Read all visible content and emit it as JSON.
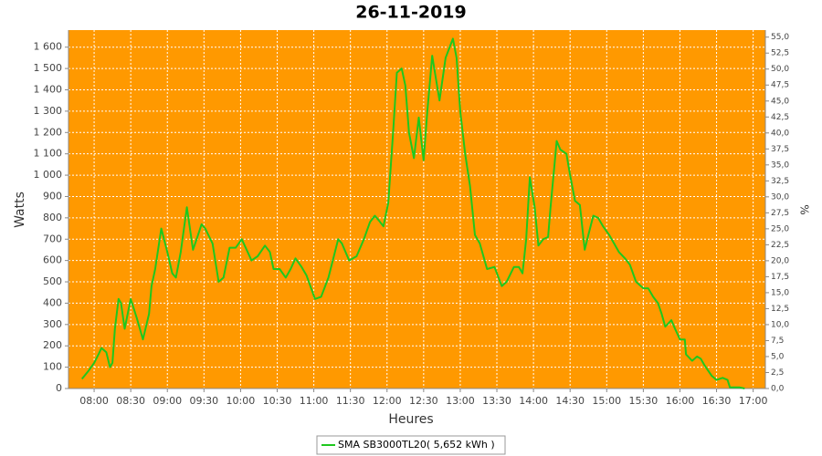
{
  "chart_data": {
    "type": "line",
    "title": "26-11-2019",
    "xlabel": "Heures",
    "ylabel": "Watts",
    "y2label": "%",
    "x": [
      "07:50",
      "07:55",
      "08:00",
      "08:04",
      "08:06",
      "08:10",
      "08:13",
      "08:15",
      "08:17",
      "08:20",
      "08:22",
      "08:25",
      "08:30",
      "08:35",
      "08:40",
      "08:45",
      "08:47",
      "08:50",
      "08:55",
      "09:00",
      "09:04",
      "09:07",
      "09:11",
      "09:16",
      "09:21",
      "09:24",
      "09:28",
      "09:31",
      "09:37",
      "09:42",
      "09:46",
      "09:51",
      "09:56",
      "10:01",
      "10:09",
      "10:14",
      "10:20",
      "10:24",
      "10:27",
      "10:32",
      "10:37",
      "10:41",
      "10:45",
      "10:50",
      "10:54",
      "11:01",
      "11:06",
      "11:12",
      "11:20",
      "11:23",
      "11:29",
      "11:35",
      "11:41",
      "11:46",
      "11:50",
      "11:53",
      "11:57",
      "12:01",
      "12:05",
      "12:08",
      "12:12",
      "12:15",
      "12:18",
      "12:22",
      "12:26",
      "12:30",
      "12:33",
      "12:37",
      "12:43",
      "12:48",
      "12:54",
      "12:57",
      "13:00",
      "13:04",
      "13:08",
      "13:12",
      "13:16",
      "13:22",
      "13:28",
      "13:34",
      "13:38",
      "13:44",
      "13:48",
      "13:51",
      "13:54",
      "13:57",
      "14:01",
      "14:04",
      "14:08",
      "14:12",
      "14:14",
      "14:19",
      "14:22",
      "14:27",
      "14:30",
      "14:34",
      "14:38",
      "14:42",
      "14:45",
      "14:49",
      "14:53",
      "14:57",
      "15:02",
      "15:06",
      "15:10",
      "15:15",
      "15:19",
      "15:24",
      "15:30",
      "15:34",
      "15:38",
      "15:42",
      "15:45",
      "15:48",
      "15:53",
      "15:56",
      "16:00",
      "16:04",
      "16:05",
      "16:10",
      "16:14",
      "16:17",
      "16:20",
      "16:26",
      "16:30",
      "16:35",
      "16:39",
      "16:41",
      "16:49",
      "16:53"
    ],
    "series": [
      {
        "name": "SMA SB3000TL20( 5,652 kWh )",
        "color": "#1ec81e",
        "values": [
          45,
          80,
          120,
          165,
          190,
          170,
          100,
          120,
          280,
          420,
          400,
          280,
          420,
          330,
          230,
          350,
          480,
          560,
          750,
          640,
          540,
          520,
          640,
          850,
          650,
          700,
          770,
          750,
          680,
          500,
          520,
          660,
          660,
          700,
          600,
          620,
          670,
          640,
          560,
          560,
          520,
          560,
          610,
          570,
          530,
          420,
          430,
          520,
          700,
          680,
          600,
          620,
          700,
          780,
          810,
          790,
          760,
          870,
          1200,
          1480,
          1500,
          1420,
          1200,
          1080,
          1270,
          1070,
          1300,
          1560,
          1350,
          1550,
          1640,
          1550,
          1300,
          1100,
          950,
          720,
          680,
          560,
          570,
          480,
          500,
          570,
          570,
          540,
          700,
          990,
          850,
          670,
          700,
          710,
          850,
          1160,
          1120,
          1100,
          1000,
          880,
          860,
          650,
          720,
          810,
          800,
          760,
          720,
          680,
          640,
          610,
          580,
          500,
          470,
          470,
          430,
          400,
          350,
          290,
          320,
          280,
          230,
          230,
          160,
          130,
          150,
          140,
          110,
          60,
          40,
          50,
          40,
          5,
          5,
          0
        ]
      }
    ],
    "xlim": [
      "07:39",
      "17:10"
    ],
    "xticks": [
      "08:00",
      "08:30",
      "09:00",
      "09:30",
      "10:00",
      "10:30",
      "11:00",
      "11:30",
      "12:00",
      "12:30",
      "13:00",
      "13:30",
      "14:00",
      "14:30",
      "15:00",
      "15:30",
      "16:00",
      "16:30",
      "17:00"
    ],
    "ylim": [
      0,
      1680
    ],
    "yticks": [
      0,
      100,
      200,
      300,
      400,
      500,
      600,
      700,
      800,
      900,
      {
        "value": 1000,
        "label": "1 000"
      },
      {
        "value": 1100,
        "label": "1 100"
      },
      {
        "value": 1200,
        "label": "1 200"
      },
      {
        "value": 1300,
        "label": "1 300"
      },
      {
        "value": 1400,
        "label": "1 400"
      },
      {
        "value": 1500,
        "label": "1 500"
      },
      {
        "value": 1600,
        "label": "1 600"
      }
    ],
    "y2lim": [
      0,
      56.1
    ],
    "y2ticks": [
      {
        "value": 0,
        "label": "0,0"
      },
      {
        "value": 2.5,
        "label": "2,5"
      },
      {
        "value": 5,
        "label": "5,0"
      },
      {
        "value": 7.5,
        "label": "7,5"
      },
      {
        "value": 10,
        "label": "10,0"
      },
      {
        "value": 12.5,
        "label": "12,5"
      },
      {
        "value": 15,
        "label": "15,0"
      },
      {
        "value": 17.5,
        "label": "17,5"
      },
      {
        "value": 20,
        "label": "20,0"
      },
      {
        "value": 22.5,
        "label": "22,5"
      },
      {
        "value": 25,
        "label": "25,0"
      },
      {
        "value": 27.5,
        "label": "27,5"
      },
      {
        "value": 30,
        "label": "30,0"
      },
      {
        "value": 32.5,
        "label": "32,5"
      },
      {
        "value": 35,
        "label": "35,0"
      },
      {
        "value": 37.5,
        "label": "37,5"
      },
      {
        "value": 40,
        "label": "40,0"
      },
      {
        "value": 42.5,
        "label": "42,5"
      },
      {
        "value": 45,
        "label": "45,0"
      },
      {
        "value": 47.5,
        "label": "47,5"
      },
      {
        "value": 50,
        "label": "50,0"
      },
      {
        "value": 52.5,
        "label": "52,5"
      },
      {
        "value": 55,
        "label": "55,0"
      }
    ],
    "grid": true,
    "plot_background": "#ff9900",
    "legend": "bottom"
  }
}
